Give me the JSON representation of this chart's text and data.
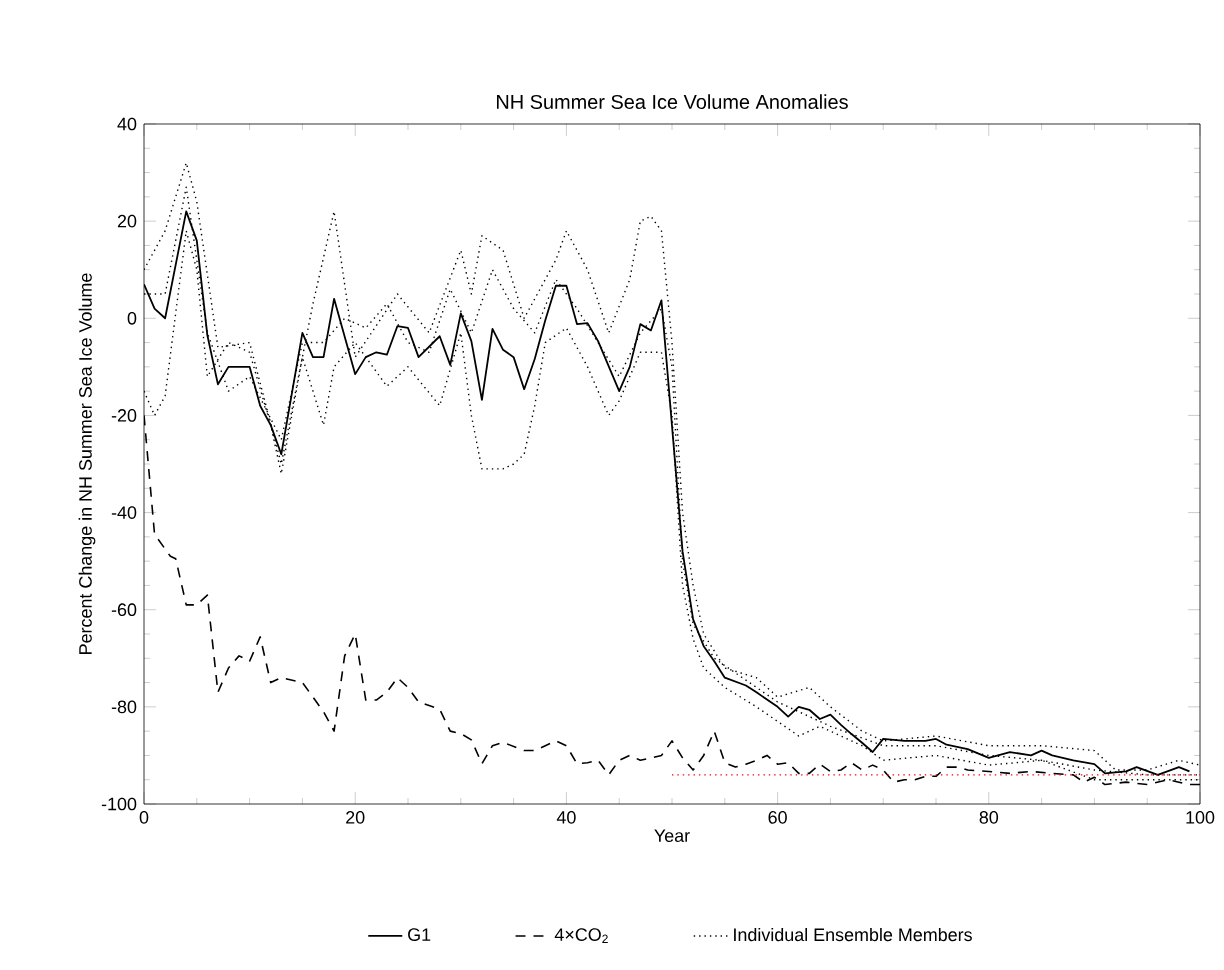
{
  "chart_data": {
    "type": "line",
    "title": "NH Summer Sea Ice Volume Anomalies",
    "xlabel": "Year",
    "ylabel": "Percent Change in NH Summer Sea Ice Volume",
    "xlim": [
      0,
      100
    ],
    "xticks": [
      0,
      20,
      40,
      60,
      80,
      100
    ],
    "ylim": [
      -100,
      40
    ],
    "yticks": [
      -100,
      -80,
      -60,
      -40,
      -20,
      0,
      20,
      40
    ],
    "grid": false,
    "legend": "bottom",
    "marker": "none",
    "series": [
      {
        "name": "G1",
        "color": "#000000",
        "line_style": "solid",
        "x": [
          0,
          1,
          2,
          4,
          5,
          6,
          7,
          8,
          10,
          11,
          12,
          13,
          15,
          16,
          17,
          18,
          20,
          21,
          22,
          23,
          24,
          25,
          26,
          28,
          29,
          30,
          31,
          32,
          33,
          34,
          35,
          36,
          37,
          38,
          39,
          40,
          41,
          42,
          43,
          45,
          46,
          47,
          48,
          49,
          51,
          52,
          53,
          54,
          55,
          57,
          58,
          60,
          61,
          62,
          63,
          64,
          65,
          66,
          67,
          68,
          69,
          70,
          72,
          74,
          75,
          76,
          78,
          80,
          82,
          84,
          85,
          86,
          88,
          90,
          91,
          93,
          94,
          96,
          98,
          99
        ],
        "values": [
          7,
          2,
          0,
          22,
          16,
          -3.5,
          -13.6,
          -10,
          -10,
          -18,
          -22,
          -28,
          -3,
          -8,
          -8,
          4,
          -11.5,
          -8,
          -7,
          -7.5,
          -1.6,
          -2,
          -8,
          -3.7,
          -9.6,
          1,
          -4.7,
          -16.8,
          -2.2,
          -6.5,
          -8,
          -14.6,
          -8.4,
          -0.4,
          6.7,
          6.7,
          -1.2,
          -1,
          -4.7,
          -15,
          -10,
          -1.2,
          -2.5,
          3.7,
          -48,
          -62,
          -67.5,
          -70.6,
          -74,
          -75.6,
          -77,
          -80,
          -82,
          -80,
          -80.6,
          -82.5,
          -81.6,
          -83.7,
          -85.6,
          -87.4,
          -89.3,
          -86.6,
          -87,
          -87,
          -86.6,
          -87.8,
          -88.7,
          -90.5,
          -89.3,
          -90,
          -89,
          -90,
          -91,
          -91.8,
          -93.7,
          -93.3,
          -92.4,
          -94,
          -92.4,
          -93.3
        ]
      },
      {
        "name": "4×CO$_{2}$",
        "color": "#000000",
        "line_style": "dashed",
        "x": [
          0,
          1,
          2.5,
          3,
          4,
          5,
          6,
          7,
          8,
          9,
          10,
          11,
          12,
          13,
          15,
          16,
          17,
          18,
          19,
          20,
          21,
          22,
          23,
          24,
          25,
          26,
          28,
          29,
          30,
          31,
          32,
          33,
          34,
          36,
          37,
          38,
          39,
          40,
          41,
          42,
          43,
          44,
          45,
          46,
          47,
          48,
          49,
          50,
          51,
          52,
          53,
          54,
          55,
          56,
          57,
          58,
          59,
          60,
          61,
          62,
          63,
          64,
          65,
          66,
          67,
          68,
          69,
          70,
          71,
          72,
          73,
          74,
          75,
          76,
          77,
          78,
          80,
          82,
          84,
          86,
          88,
          89,
          90,
          91,
          93,
          95,
          97,
          99,
          100
        ],
        "values": [
          -20,
          -44.5,
          -49,
          -49.5,
          -59,
          -59,
          -57,
          -77,
          -72,
          -69.5,
          -70.6,
          -65.6,
          -75,
          -74,
          -75,
          -78,
          -81,
          -85,
          -69.5,
          -65,
          -78.6,
          -78.6,
          -77,
          -74,
          -76,
          -79,
          -80.5,
          -85,
          -85.5,
          -86.8,
          -91.7,
          -88,
          -87.3,
          -89,
          -89,
          -88,
          -87,
          -88,
          -91.7,
          -91.5,
          -91,
          -94,
          -91,
          -90,
          -91,
          -90.5,
          -90,
          -87,
          -90.5,
          -93,
          -90,
          -85,
          -91.5,
          -92.4,
          -91.8,
          -91,
          -90,
          -91.8,
          -91.5,
          -93.7,
          -93.7,
          -91.8,
          -93.3,
          -93,
          -91.5,
          -93,
          -92,
          -93,
          -95.5,
          -95,
          -95,
          -94.3,
          -94.3,
          -92.4,
          -92.4,
          -93,
          -93.3,
          -93.7,
          -93.3,
          -93.7,
          -94,
          -95.5,
          -94.5,
          -96,
          -95.5,
          -96,
          -95,
          -96,
          -96
        ]
      },
      {
        "name": "Individual Ensemble Members",
        "color": "#000000",
        "line_style": "dotted",
        "x": [
          0,
          2,
          4,
          5,
          7,
          10,
          13,
          16,
          18,
          20,
          24,
          27,
          30,
          31,
          32,
          34,
          36,
          39,
          40,
          42,
          44,
          46,
          47,
          48,
          49,
          50,
          51,
          52,
          53,
          55,
          58,
          60,
          63,
          65,
          68,
          70,
          75,
          80,
          85,
          90,
          92,
          95,
          98,
          100
        ],
        "values": [
          10,
          18,
          32,
          24,
          -6,
          -5,
          -30,
          3,
          22,
          -8,
          5,
          -3,
          14,
          5,
          17,
          14,
          0,
          12,
          18,
          10,
          -3,
          8,
          20,
          21,
          18,
          -5,
          -40,
          -55,
          -65,
          -72,
          -74,
          -78,
          -76,
          -80,
          -85,
          -87,
          -86,
          -88,
          -88,
          -89,
          -93,
          -93,
          -91,
          -92
        ]
      },
      {
        "color": "#000000",
        "line_style": "dotted",
        "x": [
          0,
          1,
          2,
          4,
          5,
          6,
          8,
          10,
          12,
          13,
          15,
          17,
          18,
          20,
          23,
          25,
          28,
          30,
          31,
          32,
          34,
          35,
          36,
          37,
          38,
          40,
          42,
          44,
          45,
          47,
          49,
          50,
          51,
          52,
          53,
          55,
          58,
          60,
          62,
          64,
          66,
          68,
          70,
          75,
          80,
          85,
          90,
          95,
          100
        ],
        "values": [
          -15,
          -20,
          -16,
          18,
          10,
          -12,
          -5,
          -7,
          -22,
          -32,
          -8,
          -22,
          -10,
          -5,
          -14,
          -10,
          -18,
          -3,
          -20,
          -31,
          -31,
          -30,
          -28,
          -18,
          -5,
          -2,
          -10,
          -20,
          -17,
          -7,
          -7,
          -20,
          -55,
          -66,
          -72,
          -76,
          -80,
          -83,
          -86,
          -84,
          -86,
          -88,
          -91,
          -90,
          -92,
          -91,
          -95,
          -95,
          -95
        ]
      },
      {
        "color": "#000000",
        "line_style": "dotted",
        "x": [
          0,
          2,
          4,
          6,
          8,
          10,
          13,
          15,
          17,
          19,
          21,
          23,
          25,
          27,
          29,
          31,
          33,
          35,
          37,
          39,
          41,
          43,
          45,
          47,
          49,
          50,
          51,
          52,
          54,
          56,
          60,
          65,
          70,
          75,
          80,
          85,
          90,
          95,
          100
        ],
        "values": [
          5,
          5,
          27,
          -3,
          -15,
          -12,
          -25,
          -5,
          -5,
          0,
          -2,
          3,
          -5,
          -7,
          6,
          -3,
          10,
          2,
          -3,
          8,
          2,
          -5,
          -12,
          -3,
          2,
          -10,
          -50,
          -63,
          -70,
          -73,
          -79,
          -84,
          -88,
          -88,
          -90,
          -91,
          -93,
          -94,
          -94
        ]
      },
      {
        "color": "#ff0000",
        "line_style": "dotted",
        "x": [
          50,
          100
        ],
        "values": [
          -94,
          -94
        ]
      }
    ]
  }
}
